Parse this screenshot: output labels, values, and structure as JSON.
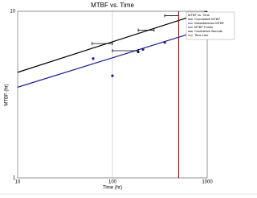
{
  "chart_data": {
    "type": "line",
    "title": "MTBF vs. Time",
    "x_label": "Time (hr)",
    "y_label": "MTBF (hr)",
    "log_x": true,
    "log_y": true,
    "grid": true,
    "xlim": [
      10,
      1000
    ],
    "ylim": [
      1,
      10
    ],
    "xticks": [
      10,
      100,
      1000
    ],
    "yticks": [
      1,
      10
    ],
    "legend_position": "upper right",
    "legend_title": "MTBF vs. Time",
    "series": [
      {
        "name": "Cumulative MTBF",
        "style": "line",
        "color": "#000000",
        "x": [
          10,
          1000
        ],
        "values": [
          4.3,
          10
        ]
      },
      {
        "name": "Instantaneous MTBF",
        "style": "line",
        "color": "#1a1aa8",
        "x": [
          10,
          1000
        ],
        "values": [
          3.5,
          7.9
        ]
      },
      {
        "name": "MTBF Points",
        "style": "points",
        "color": "#1a1a80",
        "x": [
          62.6,
          100,
          187,
          210,
          356
        ],
        "values": [
          5.2,
          4.1,
          5.7,
          5.9,
          6.5
        ]
      },
      {
        "name": "Confidence Bounds",
        "style": "hbars",
        "color": "#000000",
        "x_low": [
          61,
          100,
          187,
          356
        ],
        "x_high": [
          100,
          187,
          275,
          500
        ],
        "values": [
          6.4,
          5.8,
          7.7,
          9.4
        ]
      },
      {
        "name": "Time Line",
        "style": "line",
        "color": "#b01010",
        "x": [
          500,
          500
        ],
        "values": [
          1,
          10
        ]
      }
    ]
  }
}
